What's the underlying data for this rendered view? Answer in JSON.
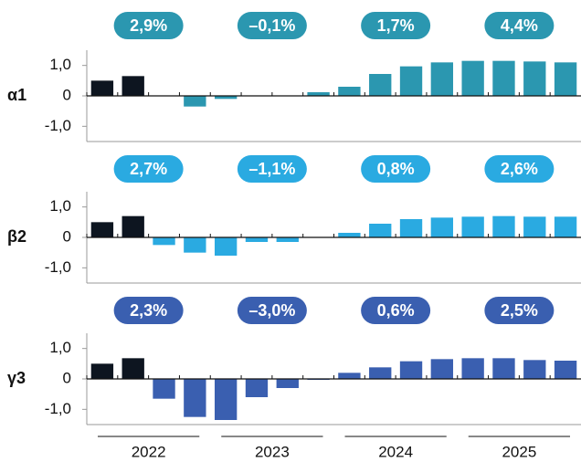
{
  "chart_data": [
    {
      "type": "bar",
      "title": "α1",
      "values": [
        0.5,
        0.65,
        0,
        -0.35,
        -0.1,
        0,
        0,
        0.12,
        0.3,
        0.72,
        0.97,
        1.1,
        1.15,
        1.15,
        1.13,
        1.1
      ],
      "bar_colors": [
        "#0d1520",
        "#0d1520",
        "#2b97b0",
        "#2b97b0",
        "#2b97b0",
        "#2b97b0",
        "#2b97b0",
        "#2b97b0",
        "#2b97b0",
        "#2b97b0",
        "#2b97b0",
        "#2b97b0",
        "#2b97b0",
        "#2b97b0",
        "#2b97b0",
        "#2b97b0"
      ],
      "color": "#2b97b0",
      "annual": {
        "values": [
          2.9,
          -0.1,
          1.7,
          4.4
        ],
        "value_labels": [
          "2,9%",
          "–0,1%",
          "1,7%",
          "4,4%"
        ]
      },
      "ylim": [
        -1.5,
        1.5
      ],
      "yticks": [
        {
          "value": 1,
          "label": "1,0"
        },
        0,
        {
          "value": -1,
          "label": "-1,0"
        }
      ]
    },
    {
      "type": "bar",
      "title": "β2",
      "values": [
        0.5,
        0.7,
        -0.25,
        -0.5,
        -0.6,
        -0.15,
        -0.15,
        0,
        0.15,
        0.45,
        0.6,
        0.65,
        0.68,
        0.7,
        0.68,
        0.68
      ],
      "bar_colors": [
        "#0d1520",
        "#0d1520",
        "#2aaae1",
        "#2aaae1",
        "#2aaae1",
        "#2aaae1",
        "#2aaae1",
        "#2aaae1",
        "#2aaae1",
        "#2aaae1",
        "#2aaae1",
        "#2aaae1",
        "#2aaae1",
        "#2aaae1",
        "#2aaae1",
        "#2aaae1"
      ],
      "color": "#2aaae1",
      "annual": {
        "values": [
          2.7,
          -1.1,
          0.8,
          2.6
        ],
        "value_labels": [
          "2,7%",
          "–1,1%",
          "0,8%",
          "2,6%"
        ]
      },
      "ylim": [
        -1.5,
        1.5
      ],
      "yticks": [
        {
          "value": 1,
          "label": "1,0"
        },
        0,
        {
          "value": -1,
          "label": "-1,0"
        }
      ]
    },
    {
      "type": "bar",
      "title": "γ3",
      "values": [
        0.5,
        0.68,
        -0.65,
        -1.25,
        -1.35,
        -0.6,
        -0.3,
        -0.03,
        0.2,
        0.38,
        0.58,
        0.65,
        0.68,
        0.68,
        0.62,
        0.6
      ],
      "bar_colors": [
        "#0d1520",
        "#0d1520",
        "#3a5fb0",
        "#3a5fb0",
        "#3a5fb0",
        "#3a5fb0",
        "#3a5fb0",
        "#3a5fb0",
        "#3a5fb0",
        "#3a5fb0",
        "#3a5fb0",
        "#3a5fb0",
        "#3a5fb0",
        "#3a5fb0",
        "#3a5fb0",
        "#3a5fb0"
      ],
      "color": "#3a5fb0",
      "annual": {
        "values": [
          2.3,
          -3.0,
          0.6,
          2.5
        ],
        "value_labels": [
          "2,3%",
          "–3,0%",
          "0,6%",
          "2,5%"
        ]
      },
      "ylim": [
        -1.5,
        1.5
      ],
      "yticks": [
        {
          "value": 1,
          "label": "1,0"
        },
        0,
        {
          "value": -1,
          "label": "-1,0"
        }
      ],
      "year_labels": [
        "2022",
        "2023",
        "2024",
        "2025"
      ]
    }
  ]
}
